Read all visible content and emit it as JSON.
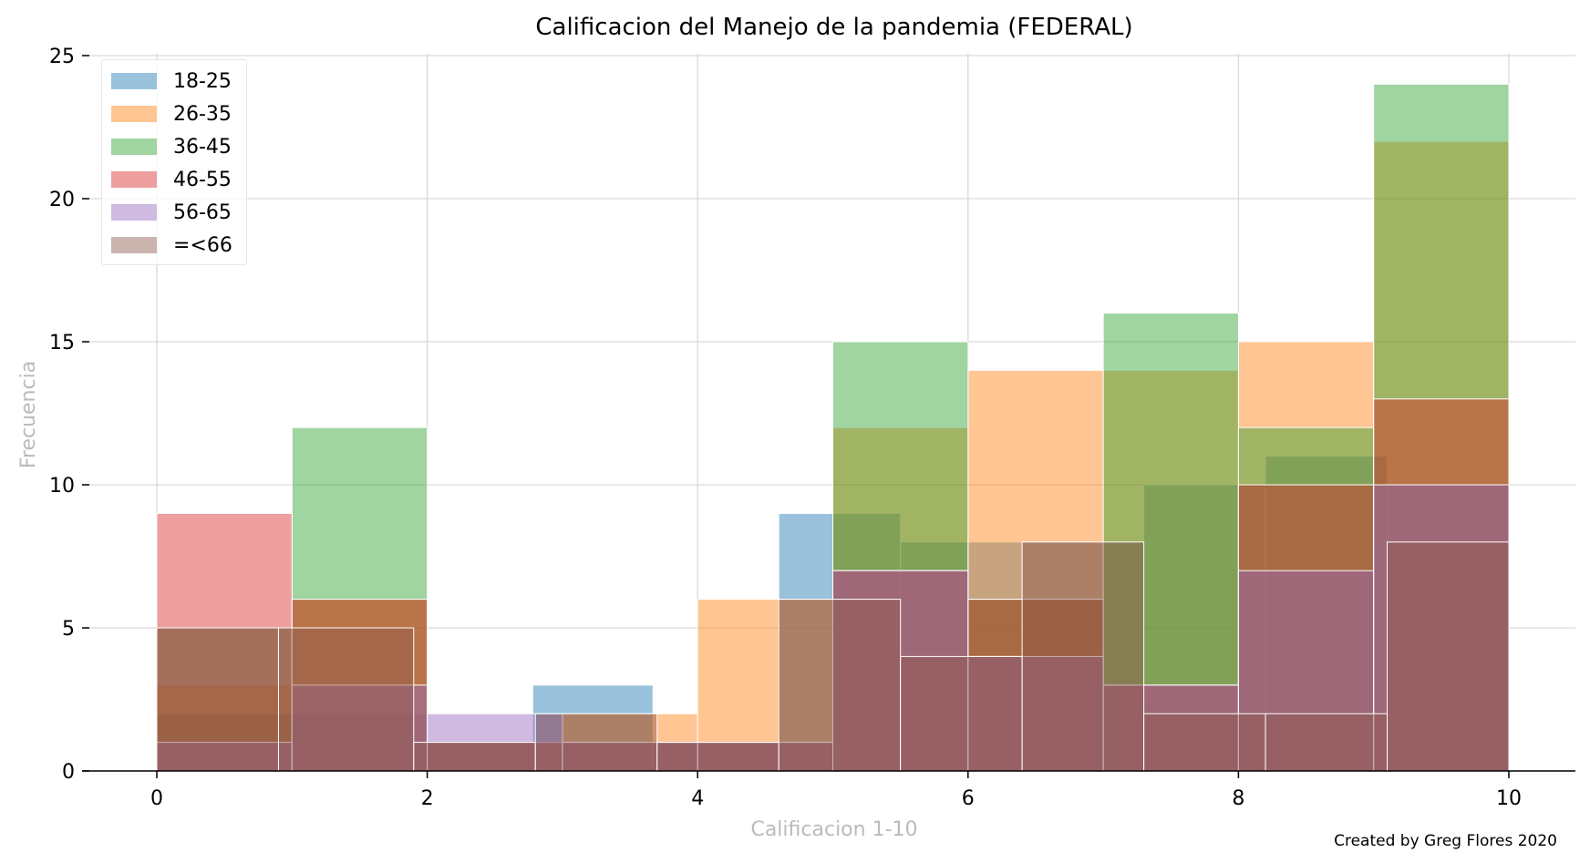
{
  "chart_data": {
    "type": "bar",
    "title": "Calificacion del Manejo de la pandemia (FEDERAL)",
    "xlabel": "Calificacion 1-10",
    "ylabel": "Frecuencia",
    "xlim": [
      -0.55,
      10.5
    ],
    "ylim": [
      0,
      25
    ],
    "xticks": [
      "0",
      "2",
      "4",
      "6",
      "8",
      "10"
    ],
    "yticks": [
      "0",
      "5",
      "10",
      "15",
      "20",
      "25"
    ],
    "grid": true,
    "legend_position": "top-left",
    "series": [
      {
        "name": "18-25",
        "color": "#1f77b4",
        "bins": [
          {
            "x0": 0,
            "x1": 1,
            "v": 2
          },
          {
            "x0": 1,
            "x1": 2,
            "v": 2
          },
          {
            "x0": 2,
            "x1": 2.78,
            "v": 1
          },
          {
            "x0": 2.78,
            "x1": 3.67,
            "v": 3
          },
          {
            "x0": 3.67,
            "x1": 4.6,
            "v": 1
          },
          {
            "x0": 4.6,
            "x1": 5.5,
            "v": 9
          },
          {
            "x0": 5.5,
            "x1": 6.4,
            "v": 8
          },
          {
            "x0": 6.4,
            "x1": 7.3,
            "v": 8
          },
          {
            "x0": 7.3,
            "x1": 8.2,
            "v": 10
          },
          {
            "x0": 8.2,
            "x1": 9.1,
            "v": 11
          },
          {
            "x0": 9.1,
            "x1": 10,
            "v": 10
          }
        ]
      },
      {
        "name": "26-35",
        "color": "#ff7f0e",
        "bins": [
          {
            "x0": 0,
            "x1": 1,
            "v": 3
          },
          {
            "x0": 1,
            "x1": 2,
            "v": 6
          },
          {
            "x0": 2,
            "x1": 3,
            "v": 1
          },
          {
            "x0": 3,
            "x1": 4,
            "v": 2
          },
          {
            "x0": 4,
            "x1": 5,
            "v": 6
          },
          {
            "x0": 5,
            "x1": 6,
            "v": 12
          },
          {
            "x0": 6,
            "x1": 7,
            "v": 14
          },
          {
            "x0": 7,
            "x1": 8,
            "v": 14
          },
          {
            "x0": 8,
            "x1": 9,
            "v": 15
          },
          {
            "x0": 9,
            "x1": 10,
            "v": 22
          }
        ]
      },
      {
        "name": "36-45",
        "color": "#2ca02c",
        "bins": [
          {
            "x0": 0,
            "x1": 1,
            "v": 5
          },
          {
            "x0": 1,
            "x1": 2,
            "v": 12
          },
          {
            "x0": 2,
            "x1": 3,
            "v": 1
          },
          {
            "x0": 3,
            "x1": 4,
            "v": 1
          },
          {
            "x0": 4,
            "x1": 5,
            "v": 1
          },
          {
            "x0": 5,
            "x1": 6,
            "v": 15
          },
          {
            "x0": 6,
            "x1": 7,
            "v": 6
          },
          {
            "x0": 7,
            "x1": 8,
            "v": 16
          },
          {
            "x0": 8,
            "x1": 9,
            "v": 12
          },
          {
            "x0": 9,
            "x1": 10,
            "v": 24
          }
        ]
      },
      {
        "name": "46-55",
        "color": "#d62728",
        "bins": [
          {
            "x0": 0,
            "x1": 1,
            "v": 9
          },
          {
            "x0": 1,
            "x1": 2,
            "v": 6
          },
          {
            "x0": 2,
            "x1": 3,
            "v": 1
          },
          {
            "x0": 3,
            "x1": 4,
            "v": 1
          },
          {
            "x0": 4,
            "x1": 5,
            "v": 1
          },
          {
            "x0": 5,
            "x1": 6,
            "v": 7
          },
          {
            "x0": 6,
            "x1": 7,
            "v": 6
          },
          {
            "x0": 7,
            "x1": 8,
            "v": 3
          },
          {
            "x0": 8,
            "x1": 9,
            "v": 10
          },
          {
            "x0": 9,
            "x1": 10,
            "v": 13
          }
        ]
      },
      {
        "name": "56-65",
        "color": "#9467bd",
        "bins": [
          {
            "x0": 0,
            "x1": 1,
            "v": 1
          },
          {
            "x0": 1,
            "x1": 2,
            "v": 3
          },
          {
            "x0": 2,
            "x1": 3,
            "v": 2
          },
          {
            "x0": 3,
            "x1": 4,
            "v": 1
          },
          {
            "x0": 4,
            "x1": 5,
            "v": 1
          },
          {
            "x0": 5,
            "x1": 6,
            "v": 7
          },
          {
            "x0": 6,
            "x1": 7,
            "v": 4
          },
          {
            "x0": 7,
            "x1": 8,
            "v": 3
          },
          {
            "x0": 8,
            "x1": 9,
            "v": 7
          },
          {
            "x0": 9,
            "x1": 10,
            "v": 10
          }
        ]
      },
      {
        "name": "=<66",
        "color": "#8c564b",
        "bins": [
          {
            "x0": 0,
            "x1": 0.9,
            "v": 5
          },
          {
            "x0": 0.9,
            "x1": 1.9,
            "v": 5
          },
          {
            "x0": 1.9,
            "x1": 2.8,
            "v": 1
          },
          {
            "x0": 2.8,
            "x1": 3.7,
            "v": 2
          },
          {
            "x0": 3.7,
            "x1": 4.6,
            "v": 1
          },
          {
            "x0": 4.6,
            "x1": 5.5,
            "v": 6
          },
          {
            "x0": 5.5,
            "x1": 6.4,
            "v": 4
          },
          {
            "x0": 6.4,
            "x1": 7.3,
            "v": 8
          },
          {
            "x0": 7.3,
            "x1": 8.2,
            "v": 2
          },
          {
            "x0": 8.2,
            "x1": 9.1,
            "v": 2
          },
          {
            "x0": 9.1,
            "x1": 10,
            "v": 8
          }
        ]
      }
    ]
  },
  "credit": "Created by Greg Flores   2020"
}
